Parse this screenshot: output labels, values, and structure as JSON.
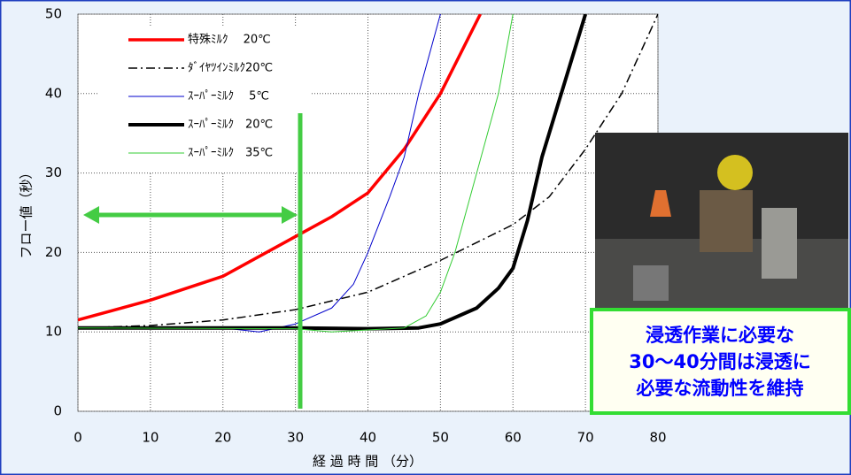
{
  "chart_data": {
    "type": "line",
    "x_label": "経 過 時 間 （分）",
    "y_label": "フロー値（秒）",
    "xlim": [
      0,
      80
    ],
    "xticks": [
      0,
      10,
      20,
      30,
      40,
      50,
      60,
      70,
      80
    ],
    "ylim": [
      0,
      50
    ],
    "yticks": [
      0,
      10,
      20,
      30,
      40,
      50
    ],
    "grid": true,
    "series": [
      {
        "name": "特殊ﾐﾙｸ　 20℃",
        "color": "#ff0000",
        "x": [
          0,
          10,
          20,
          30,
          35,
          40,
          45,
          50,
          55.5
        ],
        "values": [
          11.5,
          14,
          17,
          22,
          24.5,
          27.5,
          33,
          40,
          50
        ]
      },
      {
        "name": "ﾀﾞｲﾔﾂｲﾝﾐﾙｸ20℃",
        "color": "#000000",
        "x": [
          0,
          10,
          20,
          30,
          40,
          50,
          60,
          65,
          70,
          75,
          80
        ],
        "values": [
          10.5,
          10.8,
          11.5,
          12.8,
          15,
          19,
          23.5,
          27,
          33,
          40,
          50
        ]
      },
      {
        "name": "ｽｰﾊﾟｰﾐﾙｸ　 5℃",
        "color": "#0000cc",
        "x": [
          0,
          20,
          25,
          30,
          35,
          38,
          40,
          43,
          45,
          47,
          50
        ],
        "values": [
          10.5,
          10.5,
          10,
          11,
          13,
          16,
          20,
          27,
          32,
          40,
          50
        ]
      },
      {
        "name": "ｽｰﾊﾟｰﾐﾙｸ　20℃",
        "color": "#000000",
        "x": [
          0,
          30,
          40,
          47,
          50,
          55,
          58,
          60,
          62,
          64,
          66,
          68,
          70
        ],
        "values": [
          10.5,
          10.5,
          10.4,
          10.5,
          11,
          13,
          15.5,
          18,
          24,
          32,
          38,
          44,
          50
        ]
      },
      {
        "name": "ｽｰﾊﾟｰﾐﾙｸ　35℃",
        "color": "#33cc33",
        "x": [
          0,
          30,
          35,
          45,
          48,
          50,
          52,
          55,
          58,
          60
        ],
        "values": [
          10.5,
          10.4,
          10,
          10.5,
          12,
          15,
          20,
          30,
          40,
          50
        ]
      }
    ],
    "annotation": [
      "浸透作業に必要な",
      "30～40分間は浸透に",
      "必要な流動性を維持"
    ]
  }
}
